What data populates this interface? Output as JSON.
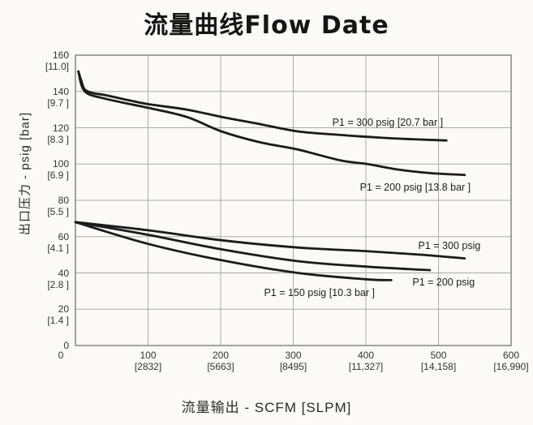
{
  "chart_data": {
    "type": "line",
    "title": "流量曲线Flow Date",
    "xlabel": "流量输出 - SCFM [SLPM]",
    "ylabel": "出口压力 - psig [bar]",
    "xlim": [
      0,
      600
    ],
    "ylim": [
      0,
      160
    ],
    "grid": true,
    "legend_position": "inline-annotations",
    "x_ticks": [
      {
        "value": 0,
        "label": "0",
        "sub": "",
        "dx": -18
      },
      {
        "value": 100,
        "label": "100",
        "sub": "[2832]"
      },
      {
        "value": 200,
        "label": "200",
        "sub": "[5663]"
      },
      {
        "value": 300,
        "label": "300",
        "sub": "[8495]"
      },
      {
        "value": 400,
        "label": "400",
        "sub": "[11,327]"
      },
      {
        "value": 500,
        "label": "500",
        "sub": "[14,158]"
      },
      {
        "value": 600,
        "label": "600",
        "sub": "[16,990]"
      }
    ],
    "y_ticks": [
      {
        "value": 160,
        "label": "160",
        "sub": "[11.0]"
      },
      {
        "value": 140,
        "label": "140",
        "sub": "[9.7 ]"
      },
      {
        "value": 120,
        "label": "120",
        "sub": "[8.3 ]"
      },
      {
        "value": 100,
        "label": "100",
        "sub": "[6.9 ]"
      },
      {
        "value": 80,
        "label": "80",
        "sub": "[5.5 ]"
      },
      {
        "value": 60,
        "label": "60",
        "sub": "[4.1 ]"
      },
      {
        "value": 40,
        "label": "40",
        "sub": "[2.8 ]"
      },
      {
        "value": 20,
        "label": "20",
        "sub": "[1.4 ]"
      },
      {
        "value": 0,
        "label": "0",
        "sub": ""
      }
    ],
    "series": [
      {
        "name": "P1 = 300 psig [20.7 bar ]",
        "points": [
          [
            4,
            151
          ],
          [
            8,
            146
          ],
          [
            13,
            141
          ],
          [
            25,
            139
          ],
          [
            41,
            138
          ],
          [
            75,
            135
          ],
          [
            100,
            133
          ],
          [
            153,
            130
          ],
          [
            201,
            126
          ],
          [
            254,
            122
          ],
          [
            306,
            118
          ],
          [
            365,
            116
          ],
          [
            402,
            115
          ],
          [
            444,
            114
          ],
          [
            511,
            113
          ]
        ]
      },
      {
        "name": "P1 = 200 psig [13.8 bar ]",
        "points": [
          [
            4,
            151
          ],
          [
            13,
            140
          ],
          [
            41,
            136
          ],
          [
            100,
            131
          ],
          [
            153,
            126
          ],
          [
            201,
            118
          ],
          [
            254,
            112
          ],
          [
            306,
            108
          ],
          [
            365,
            102
          ],
          [
            402,
            100
          ],
          [
            444,
            97
          ],
          [
            488,
            95
          ],
          [
            536,
            94
          ]
        ]
      },
      {
        "name": "P1 = 300 psig",
        "points": [
          [
            0,
            68
          ],
          [
            100,
            63.5
          ],
          [
            201,
            58
          ],
          [
            306,
            54
          ],
          [
            400,
            52
          ],
          [
            477,
            50
          ],
          [
            536,
            48
          ]
        ]
      },
      {
        "name": "P1 = 200 psig",
        "points": [
          [
            0,
            68
          ],
          [
            100,
            61
          ],
          [
            201,
            53
          ],
          [
            306,
            46.5
          ],
          [
            400,
            43.5
          ],
          [
            488,
            41.5
          ]
        ]
      },
      {
        "name": "P1 = 150 psig [10.3 bar ]",
        "points": [
          [
            0,
            68
          ],
          [
            100,
            56
          ],
          [
            201,
            47
          ],
          [
            306,
            40
          ],
          [
            400,
            36.5
          ],
          [
            435,
            36
          ]
        ]
      }
    ],
    "annotations": [
      {
        "text": "P1 = 300 psig [20.7 bar ]",
        "x": 430,
        "y": 123
      },
      {
        "text": "P1 = 200 psig [13.8 bar ]",
        "x": 468,
        "y": 87
      },
      {
        "text": "P1 = 300 psig",
        "x": 515,
        "y": 55
      },
      {
        "text": "P1 = 200 psig",
        "x": 507,
        "y": 35
      },
      {
        "text": "P1 = 150 psig [10.3 bar ]",
        "x": 336,
        "y": 29
      }
    ],
    "colors": {
      "curve": "#1b1b1b",
      "grid": "#aaaaa6",
      "axis": "#8d8d89",
      "text": "#333333",
      "background": "#fbfaf6"
    }
  }
}
